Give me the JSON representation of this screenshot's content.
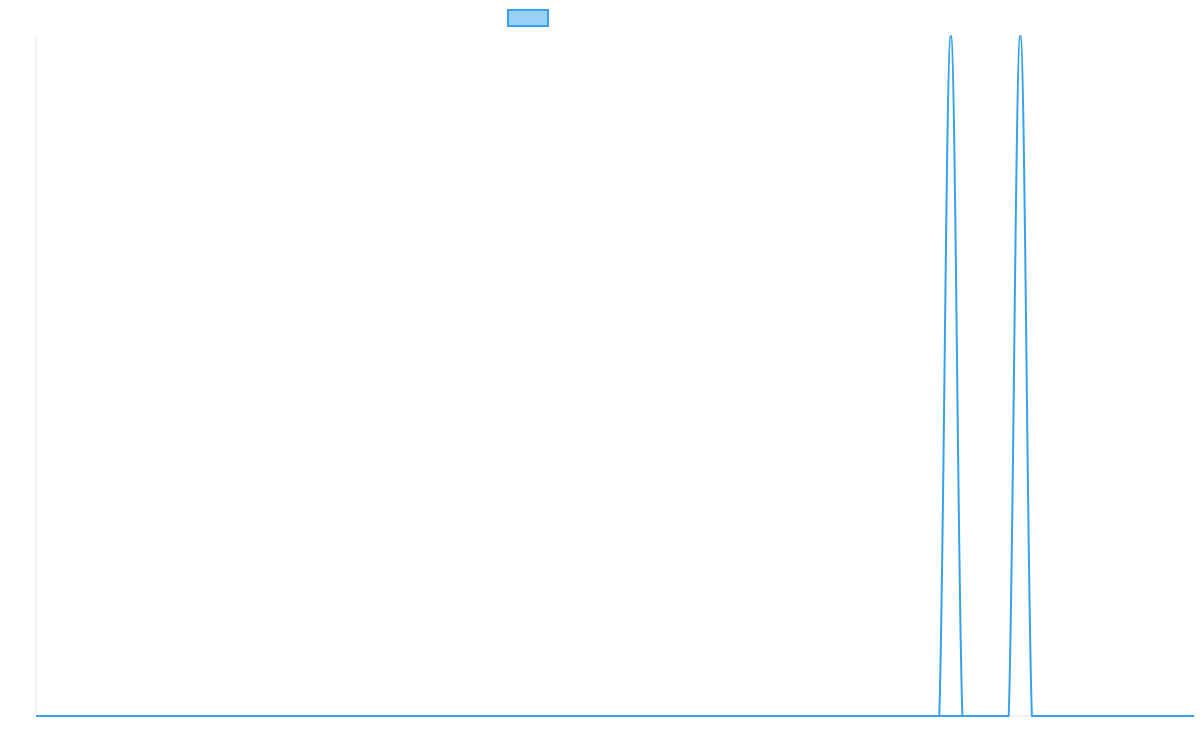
{
  "chart_data": {
    "type": "line",
    "title": "",
    "xlabel": "",
    "ylabel": "",
    "grid": false,
    "legend": {
      "placement": "top-center",
      "entries": [
        {
          "label": "",
          "color": "#36a2eb",
          "fill": "#9ad0f5"
        }
      ]
    },
    "series": [
      {
        "color": "#36a2eb",
        "x": [
          0,
          76,
          77,
          78,
          79,
          80,
          81,
          82,
          83,
          84,
          85,
          86,
          87,
          88,
          100
        ],
        "y": [
          0,
          0,
          0,
          0,
          1,
          0,
          0,
          0,
          0,
          0,
          1,
          0,
          0,
          0,
          0
        ]
      }
    ],
    "xlim": [
      0,
      100
    ],
    "ylim": [
      0,
      1
    ]
  }
}
